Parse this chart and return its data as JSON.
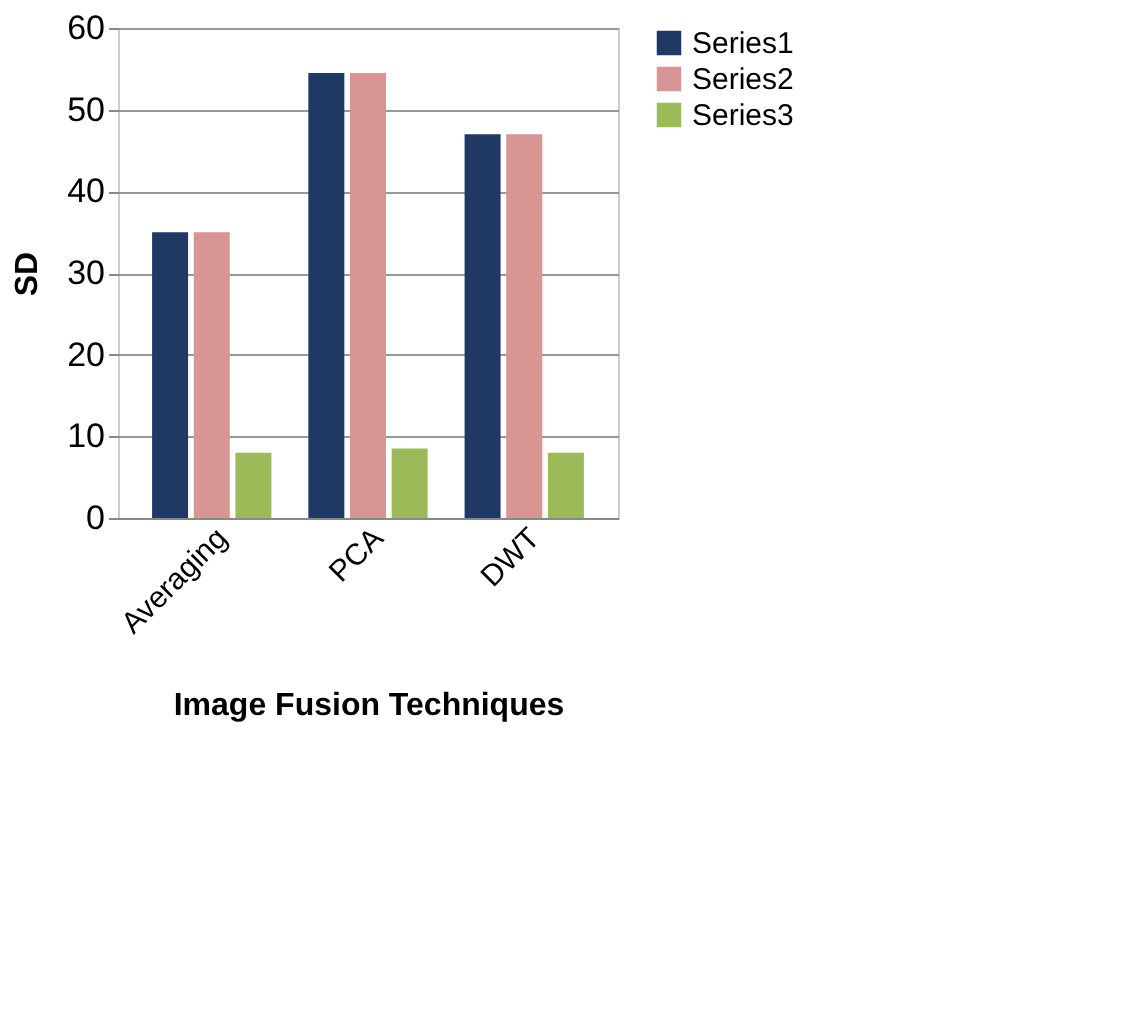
{
  "chart_data": {
    "type": "bar",
    "xlabel": "Image Fusion Techniques",
    "ylabel": "SD",
    "categories": [
      "Averaging",
      "PCA",
      "DWT"
    ],
    "series": [
      {
        "name": "Series1",
        "color": "#1f3864",
        "values": [
          35,
          54.5,
          47
        ]
      },
      {
        "name": "Series2",
        "color": "#d99594",
        "values": [
          35,
          54.5,
          47
        ]
      },
      {
        "name": "Series3",
        "color": "#9bbb59",
        "values": [
          8,
          8.5,
          8
        ]
      }
    ],
    "ylim": [
      0,
      60
    ],
    "yticks": [
      0,
      10,
      20,
      30,
      40,
      50,
      60
    ],
    "grid": "y",
    "legend": "right"
  }
}
